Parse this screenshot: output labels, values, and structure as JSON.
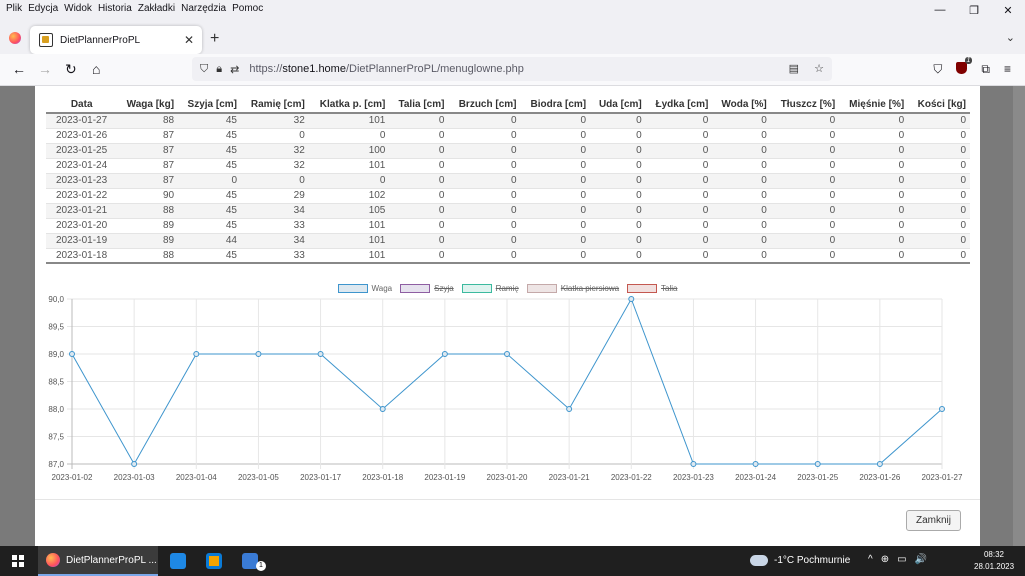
{
  "menubar": {
    "items": [
      "Plik",
      "Edycja",
      "Widok",
      "Historia",
      "Zakładki",
      "Narzędzia",
      "Pomoc"
    ]
  },
  "window_controls": {
    "minimize": "—",
    "restore": "❐",
    "close": "✕"
  },
  "tab": {
    "title": "DietPlannerProPL",
    "close": "✕"
  },
  "toolbar": {
    "new_tab": "+",
    "list_tabs": "⌄"
  },
  "urlbar": {
    "url_prefix": "https://",
    "url_host": "stone1.home",
    "url_path": "/DietPlannerProPL/menuglowne.php"
  },
  "extension_badge": "1",
  "table": {
    "headers": [
      "Data",
      "Waga [kg]",
      "Szyja [cm]",
      "Ramię [cm]",
      "Klatka p. [cm]",
      "Talia [cm]",
      "Brzuch [cm]",
      "Biodra [cm]",
      "Uda [cm]",
      "Łydka [cm]",
      "Woda [%]",
      "Tłuszcz [%]",
      "Mięśnie [%]",
      "Kości [kg]"
    ],
    "rows": [
      [
        "2023-01-27",
        "88",
        "45",
        "32",
        "101",
        "0",
        "0",
        "0",
        "0",
        "0",
        "0",
        "0",
        "0",
        "0"
      ],
      [
        "2023-01-26",
        "87",
        "45",
        "0",
        "0",
        "0",
        "0",
        "0",
        "0",
        "0",
        "0",
        "0",
        "0",
        "0"
      ],
      [
        "2023-01-25",
        "87",
        "45",
        "32",
        "100",
        "0",
        "0",
        "0",
        "0",
        "0",
        "0",
        "0",
        "0",
        "0"
      ],
      [
        "2023-01-24",
        "87",
        "45",
        "32",
        "101",
        "0",
        "0",
        "0",
        "0",
        "0",
        "0",
        "0",
        "0",
        "0"
      ],
      [
        "2023-01-23",
        "87",
        "0",
        "0",
        "0",
        "0",
        "0",
        "0",
        "0",
        "0",
        "0",
        "0",
        "0",
        "0"
      ],
      [
        "2023-01-22",
        "90",
        "45",
        "29",
        "102",
        "0",
        "0",
        "0",
        "0",
        "0",
        "0",
        "0",
        "0",
        "0"
      ],
      [
        "2023-01-21",
        "88",
        "45",
        "34",
        "105",
        "0",
        "0",
        "0",
        "0",
        "0",
        "0",
        "0",
        "0",
        "0"
      ],
      [
        "2023-01-20",
        "89",
        "45",
        "33",
        "101",
        "0",
        "0",
        "0",
        "0",
        "0",
        "0",
        "0",
        "0",
        "0"
      ],
      [
        "2023-01-19",
        "89",
        "44",
        "34",
        "101",
        "0",
        "0",
        "0",
        "0",
        "0",
        "0",
        "0",
        "0",
        "0"
      ],
      [
        "2023-01-18",
        "88",
        "45",
        "33",
        "101",
        "0",
        "0",
        "0",
        "0",
        "0",
        "0",
        "0",
        "0",
        "0"
      ]
    ]
  },
  "chart_data": {
    "type": "line",
    "x": [
      "2023-01-02",
      "2023-01-03",
      "2023-01-04",
      "2023-01-05",
      "2023-01-17",
      "2023-01-18",
      "2023-01-19",
      "2023-01-20",
      "2023-01-21",
      "2023-01-22",
      "2023-01-23",
      "2023-01-24",
      "2023-01-25",
      "2023-01-26",
      "2023-01-27"
    ],
    "series": [
      {
        "name": "Waga",
        "values": [
          89,
          87,
          89,
          89,
          89,
          88,
          89,
          89,
          88,
          90,
          87,
          87,
          87,
          87,
          88
        ],
        "color": "#3e95cd",
        "fill": "#dde8f0",
        "hidden": false
      }
    ],
    "legend": [
      {
        "name": "Waga",
        "color": "#3e95cd",
        "fill": "#dde8f0",
        "hidden": false
      },
      {
        "name": "Szyja",
        "color": "#8e5ea2",
        "fill": "#e6e2ee",
        "hidden": true
      },
      {
        "name": "Ramię",
        "color": "#3cba9f",
        "fill": "#dff3ef",
        "hidden": true
      },
      {
        "name": "Klatka piersiowa",
        "color": "#c4a9a9",
        "fill": "#eee5e5",
        "hidden": true
      },
      {
        "name": "Talia",
        "color": "#c45850",
        "fill": "#f1e0df",
        "hidden": true
      }
    ],
    "yticks": [
      "87,0",
      "87,5",
      "88,0",
      "88,5",
      "89,0",
      "89,5",
      "90,0"
    ],
    "ylim": [
      87,
      90
    ],
    "grid": true,
    "legend_position": "top"
  },
  "buttons": {
    "close_label": "Zamknij"
  },
  "taskbar": {
    "app_label": "DietPlannerProPL ...",
    "badge": "1",
    "weather": "-1°C  Pochmurnie",
    "tray": [
      "^",
      "⊕",
      "▭",
      "🔊"
    ],
    "time": "08:32",
    "date": "28.01.2023"
  },
  "colors": {
    "accent": "#3e95cd",
    "taskbar": "#1f1f1f",
    "overlay": "#7a7a7a"
  }
}
